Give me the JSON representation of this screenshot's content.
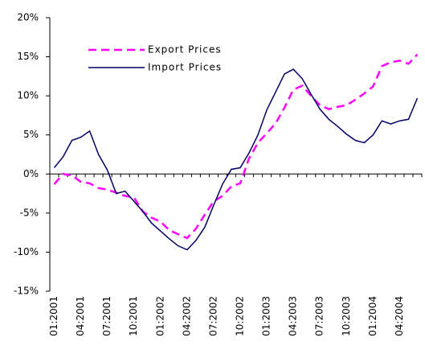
{
  "chart_data": {
    "type": "line",
    "categories": [
      "01:2001",
      null,
      null,
      "04:2001",
      null,
      null,
      "07:2001",
      null,
      null,
      "10:2001",
      null,
      null,
      "01:2002",
      null,
      null,
      "04:2002",
      null,
      null,
      "07:2002",
      null,
      null,
      "10:2002",
      null,
      null,
      "01:2003",
      null,
      null,
      "04:2003",
      null,
      null,
      "07:2003",
      null,
      null,
      "10:2003",
      null,
      null,
      "01:2004",
      null,
      null,
      "04:2004",
      null,
      null
    ],
    "series": [
      {
        "name": "Export Prices",
        "color": "#ff00ff",
        "dashed": true,
        "values": [
          -1.3,
          0.0,
          -0.2,
          -1.0,
          -1.2,
          -1.8,
          -2.0,
          -2.4,
          -2.8,
          -3.0,
          -4.8,
          -5.6,
          -6.1,
          -7.2,
          -7.7,
          -8.2,
          -7.0,
          -5.2,
          -3.5,
          -2.8,
          -1.6,
          -1.2,
          2.0,
          4.0,
          5.2,
          6.5,
          8.5,
          10.8,
          11.3,
          10.0,
          8.8,
          8.3,
          8.6,
          8.8,
          9.5,
          10.3,
          11.2,
          13.8,
          14.3,
          14.5,
          14.1,
          15.3
        ]
      },
      {
        "name": "Import Prices",
        "color": "#000066",
        "dashed": false,
        "values": [
          0.8,
          2.2,
          4.3,
          4.7,
          5.5,
          2.5,
          0.5,
          -2.5,
          -2.2,
          -3.5,
          -4.8,
          -6.3,
          -7.3,
          -8.3,
          -9.2,
          -9.7,
          -8.5,
          -6.8,
          -4.0,
          -1.3,
          0.6,
          0.8,
          2.7,
          5.0,
          8.2,
          10.5,
          12.8,
          13.4,
          12.2,
          10.2,
          8.3,
          7.0,
          6.1,
          5.1,
          4.3,
          4.0,
          5.0,
          6.8,
          6.4,
          6.8,
          7.0,
          9.7
        ]
      }
    ],
    "ylim": [
      -15,
      20
    ],
    "yticks": [
      {
        "value": -15,
        "label": "-15%"
      },
      {
        "value": -10,
        "label": "-10%"
      },
      {
        "value": -5,
        "label": "-5%"
      },
      {
        "value": 0,
        "label": "0%"
      },
      {
        "value": 5,
        "label": "5%"
      },
      {
        "value": 10,
        "label": "10%"
      },
      {
        "value": 15,
        "label": "15%"
      },
      {
        "value": 20,
        "label": "20%"
      }
    ],
    "grid": false
  }
}
